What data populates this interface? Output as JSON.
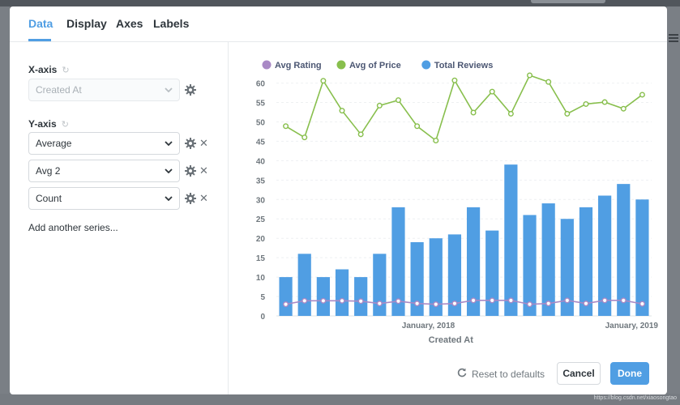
{
  "tabs": [
    {
      "label": "Data",
      "active": true
    },
    {
      "label": "Display",
      "active": false
    },
    {
      "label": "Axes",
      "active": false
    },
    {
      "label": "Labels",
      "active": false
    }
  ],
  "x_axis": {
    "title": "X-axis",
    "field": "Created At"
  },
  "y_axis": {
    "title": "Y-axis",
    "series": [
      {
        "label": "Average"
      },
      {
        "label": "Avg 2"
      },
      {
        "label": "Count"
      }
    ],
    "add_label": "Add another series..."
  },
  "footer": {
    "reset_label": "Reset to defaults",
    "cancel_label": "Cancel",
    "done_label": "Done"
  },
  "watermark": "https://blog.csdn.net/xiaosongtao",
  "colors": {
    "accent": "#509ee3",
    "avg_rating": "#a989c5",
    "avg_price": "#88bf4d",
    "total_reviews": "#509ee3"
  },
  "chart_data": {
    "type": "bar+line",
    "xlabel": "Created At",
    "x_tick_labels": [
      "January, 2018",
      "January, 2019"
    ],
    "y_ticks": [
      0,
      5,
      10,
      15,
      20,
      25,
      30,
      35,
      40,
      45,
      50,
      55,
      60
    ],
    "ylim": [
      0,
      62
    ],
    "grid": true,
    "legend_position": "top-left",
    "series": [
      {
        "name": "Avg Rating",
        "type": "line",
        "values": [
          3.0,
          3.9,
          3.9,
          3.9,
          3.8,
          3.2,
          3.8,
          3.2,
          3.0,
          3.2,
          4.0,
          4.0,
          4.0,
          3.0,
          3.2,
          4.0,
          3.2,
          4.0,
          4.0,
          3.1
        ]
      },
      {
        "name": "Avg of Price",
        "type": "line",
        "values": [
          48.9,
          46.0,
          60.6,
          52.9,
          46.8,
          54.2,
          55.6,
          48.9,
          45.2,
          60.7,
          52.4,
          57.8,
          52.1,
          62.0,
          60.3,
          52.1,
          54.6,
          55.1,
          53.4,
          57.0
        ]
      },
      {
        "name": "Total Reviews",
        "type": "bar",
        "values": [
          10,
          16,
          10,
          12,
          10,
          16,
          28,
          19,
          20,
          21,
          28,
          22,
          39,
          26,
          29,
          25,
          28,
          31,
          34,
          30
        ]
      }
    ]
  }
}
